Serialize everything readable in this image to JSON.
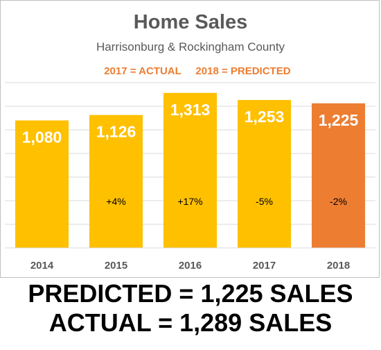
{
  "chart_data": {
    "type": "bar",
    "title": "Home Sales",
    "subtitle": "Harrisonburg & Rockingham County",
    "legend": {
      "actual_note": "2017 = ACTUAL",
      "predicted_note": "2018 = PREDICTED"
    },
    "categories": [
      "2014",
      "2015",
      "2016",
      "2017",
      "2018"
    ],
    "values": [
      1080,
      1126,
      1313,
      1253,
      1225
    ],
    "value_labels": [
      "1,080",
      "1,126",
      "1,313",
      "1,253",
      "1,225"
    ],
    "change_labels": [
      "",
      "+4%",
      "+17%",
      "-5%",
      "-2%"
    ],
    "predicted": [
      false,
      false,
      false,
      false,
      true
    ],
    "ylim": [
      0,
      1400
    ],
    "y_grid_step": 200,
    "grid": true,
    "xlabel": "",
    "ylabel": "",
    "colors": {
      "actual": "#ffc000",
      "predicted": "#ed7d31"
    }
  },
  "footer": {
    "line1": "PREDICTED = 1,225 SALES",
    "line2": "ACTUAL = 1,289 SALES"
  }
}
